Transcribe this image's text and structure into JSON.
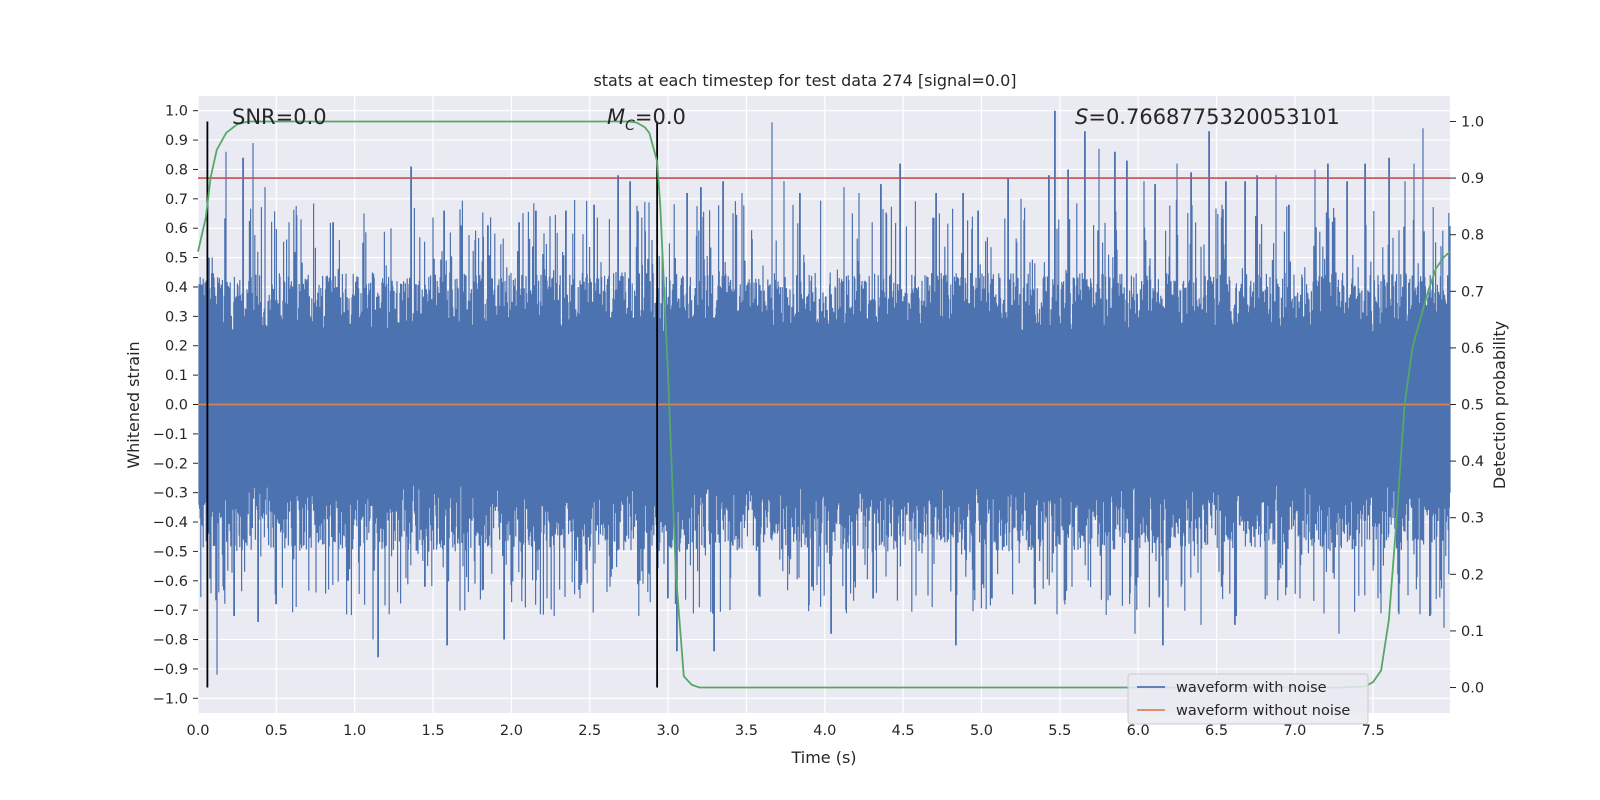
{
  "chart_data": {
    "type": "line",
    "title": "stats at each timestep for test data 274 [signal=0.0]",
    "xlabel": "Time (s)",
    "ylabel_left": "Whitened strain",
    "ylabel_right": "Detection probability",
    "xlim": [
      0.0,
      7.99
    ],
    "ylim_left": [
      -1.05,
      1.05
    ],
    "ylim_right": [
      -0.045,
      1.045
    ],
    "x_ticks": [
      "0.0",
      "0.5",
      "1.0",
      "1.5",
      "2.0",
      "2.5",
      "3.0",
      "3.5",
      "4.0",
      "4.5",
      "5.0",
      "5.5",
      "6.0",
      "6.5",
      "7.0",
      "7.5"
    ],
    "y_ticks_left": [
      "1.0",
      "0.9",
      "0.8",
      "0.7",
      "0.6",
      "0.5",
      "0.4",
      "0.3",
      "0.2",
      "0.1",
      "0.0",
      "−0.1",
      "−0.2",
      "−0.3",
      "−0.4",
      "−0.5",
      "−0.6",
      "−0.7",
      "−0.8",
      "−0.9",
      "−1.0"
    ],
    "y_ticks_right": [
      "1.0",
      "0.9",
      "0.8",
      "0.7",
      "0.6",
      "0.5",
      "0.4",
      "0.3",
      "0.2",
      "0.1",
      "0.0"
    ],
    "grid": true,
    "background": "#eaeaf2",
    "annotations": {
      "snr": "SNR=0.0",
      "mc_sym": "M",
      "mc_sub": "C",
      "mc_val": "=0.0",
      "s_sym": "S",
      "s_val": "=0.7668775320053101"
    },
    "vertical_lines_x": [
      0.06,
      2.93
    ],
    "threshold_line": {
      "y_right": 0.9,
      "color": "#c44e52"
    },
    "series": [
      {
        "name": "waveform with noise",
        "color": "#4c72b0",
        "axis": "left",
        "description_values": {
          "envelope_pos": 0.45,
          "envelope_neg": -0.5,
          "max": 1.0,
          "min": -0.93
        },
        "spikes": [
          [
            0.07,
            0.5
          ],
          [
            0.12,
            -0.92
          ],
          [
            0.18,
            0.86
          ],
          [
            0.23,
            -0.72
          ],
          [
            0.29,
            0.84
          ],
          [
            0.35,
            0.89
          ],
          [
            0.38,
            -0.74
          ],
          [
            0.43,
            0.74
          ],
          [
            0.5,
            -0.68
          ],
          [
            0.58,
            0.62
          ],
          [
            0.66,
            0.63
          ],
          [
            0.75,
            -0.64
          ],
          [
            0.86,
            0.62
          ],
          [
            0.96,
            -0.6
          ],
          [
            1.06,
            0.65
          ],
          [
            1.12,
            -0.8
          ],
          [
            1.15,
            -0.86
          ],
          [
            1.23,
            0.6
          ],
          [
            1.36,
            0.81
          ],
          [
            1.45,
            -0.62
          ],
          [
            1.57,
            0.66
          ],
          [
            1.59,
            -0.82
          ],
          [
            1.68,
            0.61
          ],
          [
            1.77,
            -0.61
          ],
          [
            1.85,
            0.61
          ],
          [
            1.95,
            -0.8
          ],
          [
            2.05,
            0.62
          ],
          [
            2.16,
            0.66
          ],
          [
            2.23,
            -0.66
          ],
          [
            2.35,
            0.66
          ],
          [
            2.44,
            -0.66
          ],
          [
            2.53,
            0.68
          ],
          [
            2.63,
            -0.62
          ],
          [
            2.68,
            0.78
          ],
          [
            2.76,
            0.76
          ],
          [
            2.82,
            -0.6
          ],
          [
            2.9,
            0.56
          ],
          [
            3.0,
            -0.66
          ],
          [
            3.06,
            -0.84
          ],
          [
            3.12,
            0.72
          ],
          [
            3.21,
            0.74
          ],
          [
            3.29,
            -0.84
          ],
          [
            3.35,
            0.76
          ],
          [
            3.47,
            0.72
          ],
          [
            3.58,
            -0.65
          ],
          [
            3.66,
            0.96
          ],
          [
            3.74,
            0.76
          ],
          [
            3.84,
            0.72
          ],
          [
            3.92,
            -0.62
          ],
          [
            4.04,
            -0.78
          ],
          [
            4.12,
            0.74
          ],
          [
            4.22,
            0.72
          ],
          [
            4.31,
            -0.66
          ],
          [
            4.36,
            0.75
          ],
          [
            4.48,
            0.82
          ],
          [
            4.58,
            -0.65
          ],
          [
            4.71,
            0.72
          ],
          [
            4.84,
            -0.82
          ],
          [
            4.88,
            0.72
          ],
          [
            4.98,
            0.66
          ],
          [
            5.07,
            -0.66
          ],
          [
            5.17,
            0.77
          ],
          [
            5.25,
            0.7
          ],
          [
            5.34,
            -0.68
          ],
          [
            5.43,
            0.78
          ],
          [
            5.47,
            1.0
          ],
          [
            5.55,
            0.8
          ],
          [
            5.58,
            -0.62
          ],
          [
            5.66,
            0.93
          ],
          [
            5.75,
            0.87
          ],
          [
            5.82,
            -0.65
          ],
          [
            5.85,
            0.86
          ],
          [
            5.93,
            0.83
          ],
          [
            5.98,
            -0.78
          ],
          [
            6.04,
            0.76
          ],
          [
            6.11,
            0.75
          ],
          [
            6.16,
            -0.82
          ],
          [
            6.25,
            0.82
          ],
          [
            6.34,
            0.79
          ],
          [
            6.4,
            -0.75
          ],
          [
            6.45,
            0.93
          ],
          [
            6.56,
            0.76
          ],
          [
            6.62,
            -0.75
          ],
          [
            6.68,
            0.76
          ],
          [
            6.76,
            0.78
          ],
          [
            6.82,
            -0.65
          ],
          [
            6.88,
            0.78
          ],
          [
            6.96,
            0.68
          ],
          [
            7.03,
            -0.66
          ],
          [
            7.13,
            0.8
          ],
          [
            7.21,
            0.82
          ],
          [
            7.28,
            -0.78
          ],
          [
            7.33,
            0.76
          ],
          [
            7.45,
            0.82
          ],
          [
            7.53,
            -0.66
          ],
          [
            7.6,
            0.84
          ],
          [
            7.7,
            0.76
          ],
          [
            7.76,
            0.82
          ],
          [
            7.82,
            0.94
          ],
          [
            7.86,
            -0.72
          ],
          [
            7.95,
            -0.76
          ]
        ]
      },
      {
        "name": "waveform without noise",
        "color": "#dd8452",
        "axis": "left",
        "x": [
          0.0,
          7.99
        ],
        "y": [
          0.0,
          0.0
        ]
      },
      {
        "name": "",
        "color": "#55a868",
        "axis": "right",
        "x": [
          0.0,
          0.05,
          0.08,
          0.12,
          0.18,
          0.25,
          0.32,
          0.4,
          0.5,
          1.0,
          2.0,
          2.6,
          2.75,
          2.8,
          2.85,
          2.88,
          2.9,
          2.93,
          2.95,
          3.0,
          3.05,
          3.1,
          3.15,
          3.2,
          3.3,
          4.0,
          5.0,
          6.0,
          7.0,
          7.3,
          7.45,
          7.5,
          7.55,
          7.6,
          7.65,
          7.7,
          7.75,
          7.8,
          7.85,
          7.9,
          7.95,
          7.99
        ],
        "y": [
          0.77,
          0.83,
          0.9,
          0.95,
          0.98,
          0.995,
          1.0,
          1.0,
          1.0,
          1.0,
          1.0,
          1.0,
          1.0,
          0.998,
          0.99,
          0.98,
          0.96,
          0.93,
          0.85,
          0.55,
          0.2,
          0.02,
          0.005,
          0.0,
          0.0,
          0.0,
          0.0,
          0.0,
          0.0,
          0.0,
          0.002,
          0.01,
          0.03,
          0.12,
          0.3,
          0.5,
          0.6,
          0.65,
          0.7,
          0.74,
          0.76,
          0.77
        ]
      }
    ],
    "legend": {
      "position": "lower-right",
      "entries": [
        "waveform with noise",
        "waveform without noise"
      ]
    }
  }
}
